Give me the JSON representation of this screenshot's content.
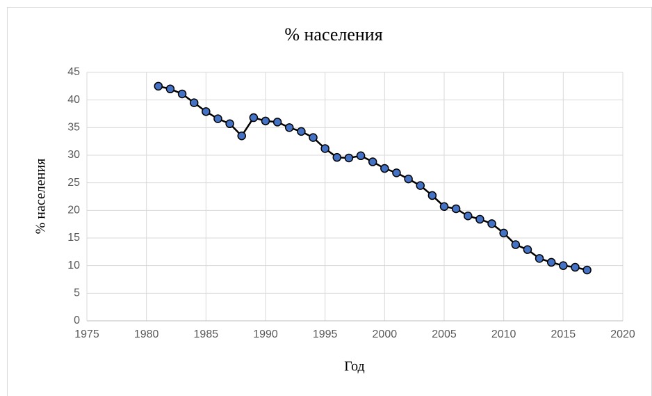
{
  "chart_data": {
    "type": "line",
    "title": "% населения",
    "xlabel": "Год",
    "ylabel": "% населения",
    "x": [
      1981,
      1982,
      1983,
      1984,
      1985,
      1986,
      1987,
      1988,
      1989,
      1990,
      1991,
      1992,
      1993,
      1994,
      1995,
      1996,
      1997,
      1998,
      1999,
      2000,
      2001,
      2002,
      2003,
      2004,
      2005,
      2006,
      2007,
      2008,
      2009,
      2010,
      2011,
      2012,
      2013,
      2014,
      2015,
      2016,
      2017
    ],
    "series": [
      {
        "name": "% населения",
        "color": "#4472c4",
        "line_color": "#000000",
        "values": [
          42.5,
          42.0,
          41.1,
          39.5,
          37.9,
          36.6,
          35.7,
          33.5,
          36.8,
          36.2,
          36.0,
          35.0,
          34.3,
          33.2,
          31.2,
          29.6,
          29.5,
          29.9,
          28.8,
          27.6,
          26.8,
          25.7,
          24.5,
          22.7,
          20.7,
          20.3,
          19.0,
          18.4,
          17.6,
          15.9,
          13.8,
          12.9,
          11.3,
          10.6,
          10.0,
          9.7,
          9.2
        ]
      }
    ],
    "xlim": [
      1975,
      2020
    ],
    "xticks": [
      1975,
      1980,
      1985,
      1990,
      1995,
      2000,
      2005,
      2010,
      2015,
      2020
    ],
    "ylim": [
      0,
      45
    ],
    "yticks": [
      0,
      5,
      10,
      15,
      20,
      25,
      30,
      35,
      40,
      45
    ],
    "grid": true
  }
}
